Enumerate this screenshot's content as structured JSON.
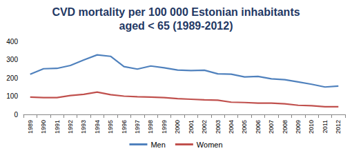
{
  "chart_data": {
    "type": "line",
    "title": "CVD mortality per 100 000 Estonian inhabitants\naged < 65 (1989-2012)",
    "categories": [
      "1989",
      "1990",
      "1991",
      "1992",
      "1993",
      "1994",
      "1995",
      "1996",
      "1997",
      "1998",
      "1999",
      "2000",
      "2001",
      "2002",
      "2003",
      "2004",
      "2005",
      "2006",
      "2007",
      "2008",
      "2009",
      "2010",
      "2011",
      "2012"
    ],
    "series": [
      {
        "name": "Men",
        "color": "#4f81bd",
        "values": [
          220,
          250,
          252,
          268,
          298,
          326,
          318,
          262,
          248,
          265,
          255,
          243,
          240,
          242,
          222,
          220,
          205,
          208,
          195,
          190,
          178,
          165,
          150,
          155
        ]
      },
      {
        "name": "Women",
        "color": "#c0504d",
        "values": [
          95,
          92,
          92,
          103,
          110,
          122,
          108,
          100,
          97,
          95,
          92,
          86,
          83,
          80,
          78,
          67,
          65,
          62,
          62,
          58,
          50,
          48,
          42,
          42
        ]
      }
    ],
    "ylim": [
      0,
      400
    ],
    "yticks": [
      0,
      100,
      200,
      300,
      400
    ],
    "grid": false,
    "legend": "bottom"
  }
}
